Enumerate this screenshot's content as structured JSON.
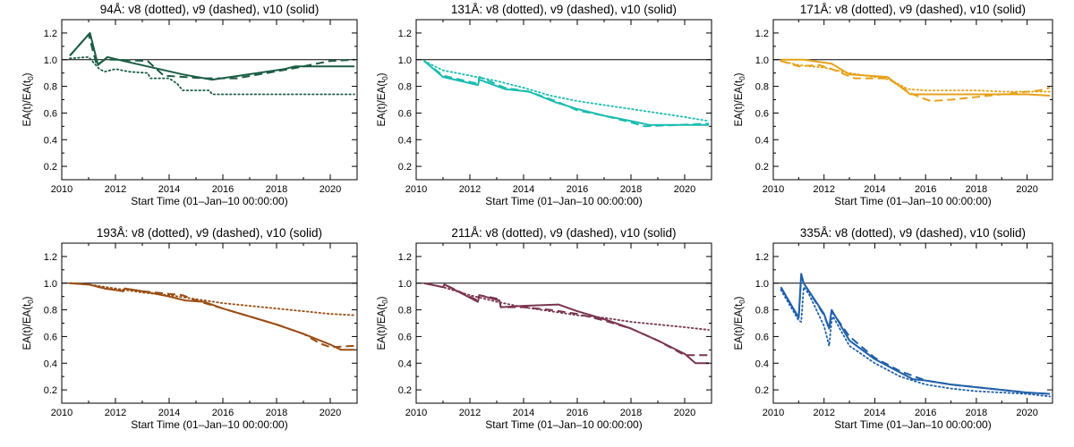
{
  "figure": {
    "xlabel": "Start Time (01–Jan–10 00:00:00)",
    "ylabel_main": "EA(t)/EA(t",
    "ylabel_sub": "0",
    "ylabel_tail": ")"
  },
  "chart_data": [
    {
      "type": "line",
      "title": "94Å: v8 (dotted), v9 (dashed), v10 (solid)",
      "xlabel": "Start Time (01–Jan–10 00:00:00)",
      "ylabel": "EA(t)/EA(t0)",
      "color": "#1b5e44",
      "xlim": [
        2010,
        2021
      ],
      "ylim": [
        0.1,
        1.3
      ],
      "xticks": [
        2010,
        2012,
        2014,
        2016,
        2018,
        2020
      ],
      "yticks": [
        0.2,
        0.4,
        0.6,
        0.8,
        1.0,
        1.2
      ],
      "reference_line": 1.0,
      "series": [
        {
          "name": "v8",
          "style": "dotted",
          "x": [
            2010.3,
            2011.0,
            2011.4,
            2011.6,
            2012.0,
            2012.5,
            2013.2,
            2013.3,
            2014.0,
            2014.3,
            2014.5,
            2015.5,
            2015.6,
            2020.9
          ],
          "y": [
            1.01,
            1.02,
            0.93,
            0.91,
            0.93,
            0.91,
            0.9,
            0.86,
            0.86,
            0.82,
            0.77,
            0.77,
            0.74,
            0.74
          ]
        },
        {
          "name": "v9",
          "style": "dashed",
          "x": [
            2010.3,
            2011.0,
            2011.3,
            2011.6,
            2012.0,
            2013.2,
            2013.8,
            2015.3,
            2016.5,
            2018.5,
            2020.0,
            2020.9
          ],
          "y": [
            1.03,
            1.19,
            0.96,
            1.0,
            1.0,
            0.99,
            0.88,
            0.86,
            0.86,
            0.93,
            0.99,
            1.0
          ]
        },
        {
          "name": "v10",
          "style": "solid",
          "x": [
            2010.3,
            2011.05,
            2011.35,
            2011.7,
            2012.3,
            2014.5,
            2015.6,
            2018.3,
            2018.7,
            2020.9
          ],
          "y": [
            1.03,
            1.2,
            0.96,
            1.02,
            0.99,
            0.89,
            0.85,
            0.93,
            0.95,
            0.95
          ]
        }
      ]
    },
    {
      "type": "line",
      "title": "131Å: v8 (dotted), v9 (dashed), v10 (solid)",
      "xlabel": "Start Time (01–Jan–10 00:00:00)",
      "ylabel": "EA(t)/EA(t0)",
      "color": "#1bbcb0",
      "xlim": [
        2010,
        2021
      ],
      "ylim": [
        0.1,
        1.3
      ],
      "xticks": [
        2010,
        2012,
        2014,
        2016,
        2018,
        2020
      ],
      "yticks": [
        0.2,
        0.4,
        0.6,
        0.8,
        1.0,
        1.2
      ],
      "reference_line": 1.0,
      "series": [
        {
          "name": "v8",
          "style": "dotted",
          "x": [
            2010.3,
            2011.0,
            2012.0,
            2013.0,
            2014.0,
            2015.0,
            2016.0,
            2017.0,
            2018.0,
            2019.0,
            2020.0,
            2020.9
          ],
          "y": [
            0.99,
            0.92,
            0.88,
            0.84,
            0.79,
            0.73,
            0.69,
            0.66,
            0.63,
            0.6,
            0.57,
            0.54
          ]
        },
        {
          "name": "v9",
          "style": "dashed",
          "x": [
            2010.3,
            2011.0,
            2012.3,
            2012.35,
            2013.3,
            2014.2,
            2015.2,
            2016.0,
            2017.0,
            2018.0,
            2018.5,
            2020.9
          ],
          "y": [
            0.99,
            0.88,
            0.82,
            0.87,
            0.79,
            0.76,
            0.69,
            0.62,
            0.58,
            0.53,
            0.5,
            0.52
          ]
        },
        {
          "name": "v10",
          "style": "solid",
          "x": [
            2010.3,
            2011.0,
            2012.3,
            2012.35,
            2013.3,
            2014.2,
            2015.2,
            2016.0,
            2017.0,
            2018.0,
            2018.7,
            2020.9
          ],
          "y": [
            0.99,
            0.87,
            0.81,
            0.85,
            0.78,
            0.76,
            0.68,
            0.63,
            0.58,
            0.54,
            0.51,
            0.51
          ]
        }
      ]
    },
    {
      "type": "line",
      "title": "171Å: v8 (dotted), v9 (dashed), v10 (solid)",
      "xlabel": "Start Time (01–Jan–10 00:00:00)",
      "ylabel": "EA(t)/EA(t0)",
      "color": "#e6a11a",
      "xlim": [
        2010,
        2021
      ],
      "ylim": [
        0.1,
        1.3
      ],
      "xticks": [
        2010,
        2012,
        2014,
        2016,
        2018,
        2020
      ],
      "yticks": [
        0.2,
        0.4,
        0.6,
        0.8,
        1.0,
        1.2
      ],
      "reference_line": 1.0,
      "series": [
        {
          "name": "v8",
          "style": "dotted",
          "x": [
            2010.3,
            2011.0,
            2012.0,
            2013.0,
            2014.0,
            2014.6,
            2015.0,
            2015.3,
            2016.0,
            2017.0,
            2018.0,
            2019.0,
            2020.0,
            2020.9
          ],
          "y": [
            0.99,
            0.96,
            0.94,
            0.9,
            0.87,
            0.85,
            0.81,
            0.78,
            0.77,
            0.77,
            0.77,
            0.76,
            0.76,
            0.76
          ]
        },
        {
          "name": "v9",
          "style": "dashed",
          "x": [
            2010.3,
            2011.0,
            2011.8,
            2012.3,
            2013.2,
            2014.5,
            2015.5,
            2015.9,
            2016.2,
            2017.0,
            2018.5,
            2019.5,
            2020.5,
            2020.9
          ],
          "y": [
            0.99,
            0.95,
            0.96,
            0.93,
            0.86,
            0.86,
            0.74,
            0.71,
            0.69,
            0.7,
            0.73,
            0.75,
            0.77,
            0.79
          ]
        },
        {
          "name": "v10",
          "style": "solid",
          "x": [
            2010.3,
            2011.2,
            2012.3,
            2013.0,
            2014.5,
            2015.4,
            2016.0,
            2017.0,
            2018.0,
            2019.0,
            2020.0,
            2020.9
          ],
          "y": [
            1.0,
            1.0,
            0.97,
            0.89,
            0.87,
            0.74,
            0.74,
            0.74,
            0.74,
            0.74,
            0.74,
            0.73
          ]
        }
      ]
    },
    {
      "type": "line",
      "title": "193Å: v8 (dotted), v9 (dashed), v10 (solid)",
      "xlabel": "Start Time (01–Jan–10 00:00:00)",
      "ylabel": "EA(t)/EA(t0)",
      "color": "#9a4e15",
      "xlim": [
        2010,
        2021
      ],
      "ylim": [
        0.1,
        1.3
      ],
      "xticks": [
        2010,
        2012,
        2014,
        2016,
        2018,
        2020
      ],
      "yticks": [
        0.2,
        0.4,
        0.6,
        0.8,
        1.0,
        1.2
      ],
      "reference_line": 1.0,
      "series": [
        {
          "name": "v8",
          "style": "dotted",
          "x": [
            2010.3,
            2011.0,
            2012.0,
            2013.0,
            2014.0,
            2015.0,
            2016.0,
            2017.0,
            2018.0,
            2019.0,
            2020.0,
            2020.9
          ],
          "y": [
            1.0,
            0.99,
            0.96,
            0.93,
            0.91,
            0.88,
            0.85,
            0.83,
            0.81,
            0.79,
            0.77,
            0.76
          ]
        },
        {
          "name": "v9",
          "style": "dashed",
          "x": [
            2010.3,
            2011.0,
            2011.6,
            2012.3,
            2012.35,
            2013.0,
            2014.0,
            2014.5,
            2015.0,
            2016.0,
            2017.0,
            2018.0,
            2019.0,
            2019.6,
            2020.0,
            2020.9
          ],
          "y": [
            1.0,
            0.99,
            0.96,
            0.94,
            0.96,
            0.94,
            0.92,
            0.91,
            0.87,
            0.81,
            0.75,
            0.69,
            0.62,
            0.55,
            0.52,
            0.53
          ]
        },
        {
          "name": "v10",
          "style": "solid",
          "x": [
            2010.3,
            2011.0,
            2011.6,
            2012.3,
            2012.35,
            2013.0,
            2014.0,
            2014.6,
            2015.3,
            2016.0,
            2017.0,
            2018.0,
            2019.0,
            2020.0,
            2020.4,
            2020.9
          ],
          "y": [
            1.0,
            0.99,
            0.96,
            0.94,
            0.96,
            0.94,
            0.9,
            0.87,
            0.86,
            0.81,
            0.75,
            0.69,
            0.62,
            0.54,
            0.5,
            0.5
          ]
        }
      ]
    },
    {
      "type": "line",
      "title": "211Å: v8 (dotted), v9 (dashed), v10 (solid)",
      "xlabel": "Start Time (01–Jan–10 00:00:00)",
      "ylabel": "EA(t)/EA(t0)",
      "color": "#7a3550",
      "xlim": [
        2010,
        2021
      ],
      "ylim": [
        0.1,
        1.3
      ],
      "xticks": [
        2010,
        2012,
        2014,
        2016,
        2018,
        2020
      ],
      "yticks": [
        0.2,
        0.4,
        0.6,
        0.8,
        1.0,
        1.2
      ],
      "reference_line": 1.0,
      "series": [
        {
          "name": "v8",
          "style": "dotted",
          "x": [
            2010.3,
            2011.0,
            2012.0,
            2013.0,
            2014.0,
            2015.0,
            2016.0,
            2017.0,
            2018.0,
            2019.0,
            2020.0,
            2020.9
          ],
          "y": [
            1.0,
            0.97,
            0.91,
            0.86,
            0.82,
            0.79,
            0.76,
            0.74,
            0.71,
            0.69,
            0.67,
            0.65
          ]
        },
        {
          "name": "v9",
          "style": "dashed",
          "x": [
            2010.3,
            2011.0,
            2011.05,
            2012.3,
            2012.35,
            2013.1,
            2013.15,
            2014.0,
            2015.0,
            2016.0,
            2017.0,
            2018.0,
            2019.0,
            2020.0,
            2020.9
          ],
          "y": [
            1.0,
            0.97,
            0.99,
            0.87,
            0.91,
            0.88,
            0.82,
            0.82,
            0.8,
            0.77,
            0.72,
            0.66,
            0.57,
            0.46,
            0.46
          ]
        },
        {
          "name": "v10",
          "style": "solid",
          "x": [
            2010.3,
            2011.0,
            2011.05,
            2012.3,
            2012.35,
            2013.1,
            2013.15,
            2014.0,
            2015.3,
            2016.0,
            2017.0,
            2018.0,
            2019.0,
            2020.0,
            2020.4,
            2020.9
          ],
          "y": [
            1.0,
            0.97,
            0.99,
            0.86,
            0.91,
            0.87,
            0.82,
            0.83,
            0.84,
            0.79,
            0.73,
            0.66,
            0.57,
            0.47,
            0.4,
            0.4
          ]
        }
      ]
    },
    {
      "type": "line",
      "title": "335Å: v8 (dotted), v9 (dashed), v10 (solid)",
      "xlabel": "Start Time (01–Jan–10 00:00:00)",
      "ylabel": "EA(t)/EA(t0)",
      "color": "#2060a8",
      "xlim": [
        2010,
        2021
      ],
      "ylim": [
        0.1,
        1.3
      ],
      "xticks": [
        2010,
        2012,
        2014,
        2016,
        2018,
        2020
      ],
      "yticks": [
        0.2,
        0.4,
        0.6,
        0.8,
        1.0,
        1.2
      ],
      "reference_line": 1.0,
      "series": [
        {
          "name": "v8",
          "style": "dotted",
          "x": [
            2010.3,
            2011.0,
            2011.1,
            2011.2,
            2011.4,
            2012.0,
            2012.2,
            2012.3,
            2012.35,
            2013.0,
            2014.0,
            2015.0,
            2016.0,
            2017.0,
            2018.0,
            2019.0,
            2020.0,
            2020.9
          ],
          "y": [
            0.95,
            0.72,
            0.71,
            0.97,
            0.92,
            0.68,
            0.53,
            0.72,
            0.75,
            0.53,
            0.4,
            0.3,
            0.24,
            0.21,
            0.19,
            0.18,
            0.17,
            0.15
          ]
        },
        {
          "name": "v9",
          "style": "dashed",
          "x": [
            2010.3,
            2011.0,
            2011.1,
            2011.2,
            2012.0,
            2012.2,
            2012.3,
            2013.0,
            2014.0,
            2015.0,
            2016.0,
            2017.0,
            2018.0,
            2019.0,
            2020.0,
            2020.9
          ],
          "y": [
            0.97,
            0.74,
            1.05,
            1.0,
            0.76,
            0.66,
            0.79,
            0.6,
            0.44,
            0.34,
            0.27,
            0.24,
            0.22,
            0.2,
            0.18,
            0.17
          ]
        },
        {
          "name": "v10",
          "style": "solid",
          "x": [
            2010.3,
            2011.0,
            2011.1,
            2011.2,
            2012.0,
            2012.2,
            2012.3,
            2013.0,
            2014.0,
            2015.0,
            2015.5,
            2016.0,
            2017.0,
            2018.0,
            2019.0,
            2020.0,
            2020.9
          ],
          "y": [
            0.97,
            0.74,
            1.07,
            1.0,
            0.77,
            0.66,
            0.8,
            0.57,
            0.43,
            0.33,
            0.28,
            0.27,
            0.24,
            0.22,
            0.2,
            0.18,
            0.17
          ]
        }
      ]
    }
  ]
}
